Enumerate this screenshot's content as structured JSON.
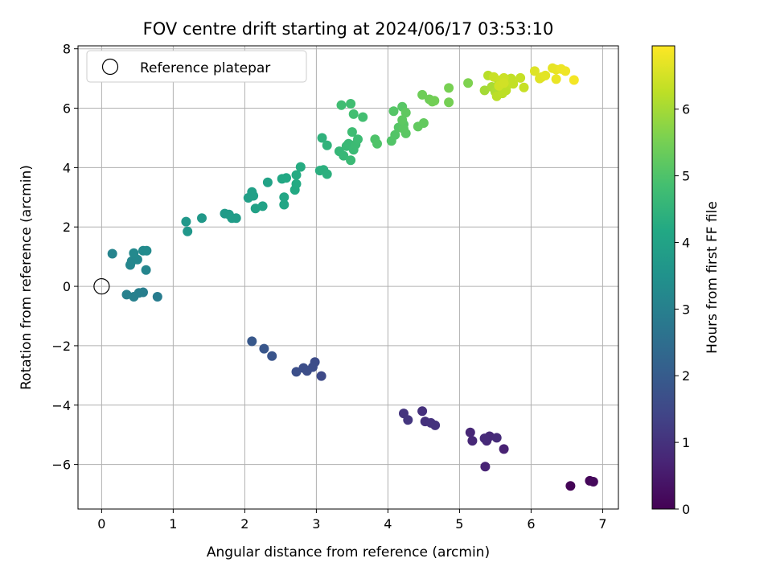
{
  "chart_data": {
    "type": "scatter",
    "title": "FOV centre drift starting at 2024/06/17 03:53:10",
    "xlabel": "Angular distance from reference (arcmin)",
    "ylabel": "Rotation from reference (arcmin)",
    "xlim": [
      -0.33,
      7.22
    ],
    "ylim": [
      -7.5,
      8.1
    ],
    "xticks": [
      0,
      1,
      2,
      3,
      4,
      5,
      6,
      7
    ],
    "yticks": [
      -6,
      -4,
      -2,
      0,
      2,
      4,
      6,
      8
    ],
    "grid": true,
    "legend": {
      "position": "top-left",
      "entries": [
        "Reference platepar"
      ]
    },
    "reference_point": {
      "x": 0,
      "y": 0,
      "label": "Reference platepar"
    },
    "colorbar": {
      "label": "Hours from first FF file",
      "colormap": "viridis",
      "range": [
        0,
        6.95
      ],
      "ticks": [
        0,
        1,
        2,
        3,
        4,
        5,
        6
      ]
    },
    "points": [
      [
        6.55,
        -6.72,
        0.05
      ],
      [
        6.82,
        -6.55,
        0.1
      ],
      [
        6.87,
        -6.58,
        0.15
      ],
      [
        5.62,
        -5.48,
        0.65
      ],
      [
        5.36,
        -6.07,
        0.7
      ],
      [
        5.15,
        -4.92,
        0.75
      ],
      [
        5.18,
        -5.2,
        0.78
      ],
      [
        5.38,
        -5.2,
        0.8
      ],
      [
        5.42,
        -5.05,
        0.82
      ],
      [
        5.35,
        -5.12,
        0.84
      ],
      [
        5.52,
        -5.1,
        0.86
      ],
      [
        4.48,
        -4.2,
        0.95
      ],
      [
        4.52,
        -4.55,
        0.98
      ],
      [
        4.6,
        -4.6,
        1.0
      ],
      [
        4.66,
        -4.68,
        1.02
      ],
      [
        4.22,
        -4.28,
        1.05
      ],
      [
        4.28,
        -4.5,
        1.08
      ],
      [
        3.07,
        -3.02,
        1.55
      ],
      [
        2.98,
        -2.55,
        1.6
      ],
      [
        2.95,
        -2.72,
        1.62
      ],
      [
        2.87,
        -2.85,
        1.64
      ],
      [
        2.82,
        -2.75,
        1.66
      ],
      [
        2.72,
        -2.88,
        1.68
      ],
      [
        2.38,
        -2.35,
        1.8
      ],
      [
        2.27,
        -2.1,
        1.85
      ],
      [
        2.1,
        -1.85,
        1.9
      ],
      [
        0.78,
        -0.35,
        2.9
      ],
      [
        0.58,
        -0.2,
        2.95
      ],
      [
        0.52,
        -0.22,
        2.98
      ],
      [
        0.45,
        -0.35,
        3.0
      ],
      [
        0.35,
        -0.28,
        3.02
      ],
      [
        0.15,
        1.1,
        3.1
      ],
      [
        0.62,
        0.55,
        3.15
      ],
      [
        0.4,
        0.72,
        3.18
      ],
      [
        0.42,
        0.85,
        3.2
      ],
      [
        0.5,
        0.9,
        3.22
      ],
      [
        0.45,
        1.12,
        3.25
      ],
      [
        0.58,
        1.2,
        3.27
      ],
      [
        0.63,
        1.2,
        3.3
      ],
      [
        1.2,
        1.85,
        3.65
      ],
      [
        1.18,
        2.18,
        3.68
      ],
      [
        1.4,
        2.3,
        3.7
      ],
      [
        1.72,
        2.45,
        3.75
      ],
      [
        1.78,
        2.42,
        3.78
      ],
      [
        1.82,
        2.3,
        3.8
      ],
      [
        1.88,
        2.3,
        3.82
      ],
      [
        2.05,
        2.98,
        3.9
      ],
      [
        2.1,
        3.18,
        3.92
      ],
      [
        2.12,
        3.05,
        3.94
      ],
      [
        2.15,
        2.62,
        3.96
      ],
      [
        2.25,
        2.7,
        3.98
      ],
      [
        2.32,
        3.5,
        4.0
      ],
      [
        2.55,
        2.75,
        4.1
      ],
      [
        2.55,
        3.0,
        4.12
      ],
      [
        2.52,
        3.62,
        4.14
      ],
      [
        2.58,
        3.65,
        4.16
      ],
      [
        2.7,
        3.25,
        4.2
      ],
      [
        2.72,
        3.45,
        4.22
      ],
      [
        2.72,
        3.75,
        4.24
      ],
      [
        2.78,
        4.02,
        4.26
      ],
      [
        3.05,
        3.9,
        4.35
      ],
      [
        3.1,
        3.92,
        4.37
      ],
      [
        3.15,
        3.78,
        4.39
      ],
      [
        3.08,
        5.0,
        4.45
      ],
      [
        3.15,
        4.75,
        4.47
      ],
      [
        3.32,
        4.55,
        4.6
      ],
      [
        3.38,
        4.4,
        4.62
      ],
      [
        3.42,
        4.72,
        4.64
      ],
      [
        3.45,
        4.8,
        4.66
      ],
      [
        3.48,
        4.25,
        4.68
      ],
      [
        3.52,
        4.6,
        4.7
      ],
      [
        3.55,
        4.78,
        4.72
      ],
      [
        3.58,
        4.95,
        4.74
      ],
      [
        3.5,
        5.2,
        4.76
      ],
      [
        3.35,
        6.1,
        4.78
      ],
      [
        3.48,
        6.15,
        4.8
      ],
      [
        3.52,
        5.8,
        4.82
      ],
      [
        3.65,
        5.7,
        4.84
      ],
      [
        3.82,
        4.95,
        5.0
      ],
      [
        3.85,
        4.8,
        5.02
      ],
      [
        4.05,
        4.9,
        5.04
      ],
      [
        4.1,
        5.1,
        5.06
      ],
      [
        4.08,
        5.9,
        5.08
      ],
      [
        4.15,
        5.35,
        5.1
      ],
      [
        4.2,
        6.05,
        5.12
      ],
      [
        4.22,
        5.45,
        5.14
      ],
      [
        4.25,
        5.15,
        5.16
      ],
      [
        4.22,
        5.3,
        5.18
      ],
      [
        4.2,
        5.6,
        5.2
      ],
      [
        4.25,
        5.85,
        5.22
      ],
      [
        4.42,
        5.38,
        5.25
      ],
      [
        4.5,
        5.5,
        5.27
      ],
      [
        4.48,
        6.45,
        5.4
      ],
      [
        4.58,
        6.3,
        5.42
      ],
      [
        4.62,
        6.22,
        5.44
      ],
      [
        4.65,
        6.25,
        5.46
      ],
      [
        4.85,
        6.2,
        5.5
      ],
      [
        4.85,
        6.68,
        5.52
      ],
      [
        5.12,
        6.85,
        5.6
      ],
      [
        5.35,
        6.6,
        6.0
      ],
      [
        5.45,
        6.72,
        6.05
      ],
      [
        5.5,
        6.55,
        6.1
      ],
      [
        5.55,
        6.9,
        6.15
      ],
      [
        5.4,
        7.1,
        6.2
      ],
      [
        5.52,
        6.4,
        6.22
      ],
      [
        5.6,
        6.5,
        6.24
      ],
      [
        5.65,
        6.6,
        6.26
      ],
      [
        5.68,
        6.8,
        6.28
      ],
      [
        5.72,
        7.0,
        6.3
      ],
      [
        5.75,
        6.82,
        6.32
      ],
      [
        5.85,
        7.02,
        6.34
      ],
      [
        5.9,
        6.7,
        6.36
      ],
      [
        5.48,
        7.05,
        6.38
      ],
      [
        5.58,
        6.95,
        6.4
      ],
      [
        5.62,
        7.02,
        6.42
      ],
      [
        5.55,
        6.75,
        6.45
      ],
      [
        5.62,
        6.85,
        6.47
      ],
      [
        6.05,
        7.25,
        6.6
      ],
      [
        6.12,
        7.0,
        6.62
      ],
      [
        6.15,
        7.05,
        6.64
      ],
      [
        6.2,
        7.1,
        6.66
      ],
      [
        6.3,
        7.35,
        6.7
      ],
      [
        6.35,
        7.3,
        6.72
      ],
      [
        6.35,
        6.98,
        6.74
      ],
      [
        6.42,
        7.32,
        6.78
      ],
      [
        6.48,
        7.25,
        6.8
      ],
      [
        6.6,
        6.95,
        6.85
      ]
    ]
  }
}
